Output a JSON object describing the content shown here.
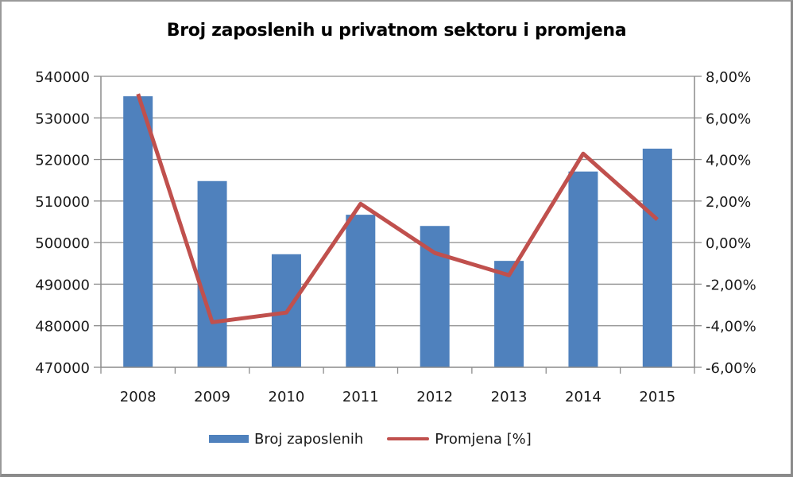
{
  "chart_data": {
    "type": "bar+line",
    "title": "Broj zaposlenih u privatnom sektoru i promjena",
    "categories": [
      "2008",
      "2009",
      "2010",
      "2011",
      "2012",
      "2013",
      "2014",
      "2015"
    ],
    "series": [
      {
        "name": "Broj zaposlenih",
        "type": "bar",
        "axis": "left",
        "color": "#4F81BD",
        "values": [
          535200,
          514800,
          497200,
          506700,
          504000,
          495600,
          517100,
          522600
        ]
      },
      {
        "name": "Promjena [%]",
        "type": "line",
        "axis": "right",
        "color": "#C0504D",
        "values": [
          7.15,
          -3.83,
          -3.37,
          1.87,
          -0.5,
          -1.57,
          4.28,
          1.11
        ]
      }
    ],
    "xlabel": "",
    "ylabel": "",
    "y_left": {
      "ylim": [
        470000,
        540000
      ],
      "ticks": [
        "470000",
        "480000",
        "490000",
        "500000",
        "510000",
        "520000",
        "530000",
        "540000"
      ]
    },
    "y_right": {
      "ylim": [
        -6,
        8
      ],
      "ticks": [
        "-6,00%",
        "-4,00%",
        "-2,00%",
        "0,00%",
        "2,00%",
        "4,00%",
        "6,00%",
        "8,00%"
      ]
    },
    "grid": true,
    "legend_position": "bottom"
  },
  "legend": {
    "items": [
      {
        "label": "Broj zaposlenih",
        "color": "#4F81BD"
      },
      {
        "label": "Promjena [%]",
        "color": "#C0504D"
      }
    ]
  }
}
